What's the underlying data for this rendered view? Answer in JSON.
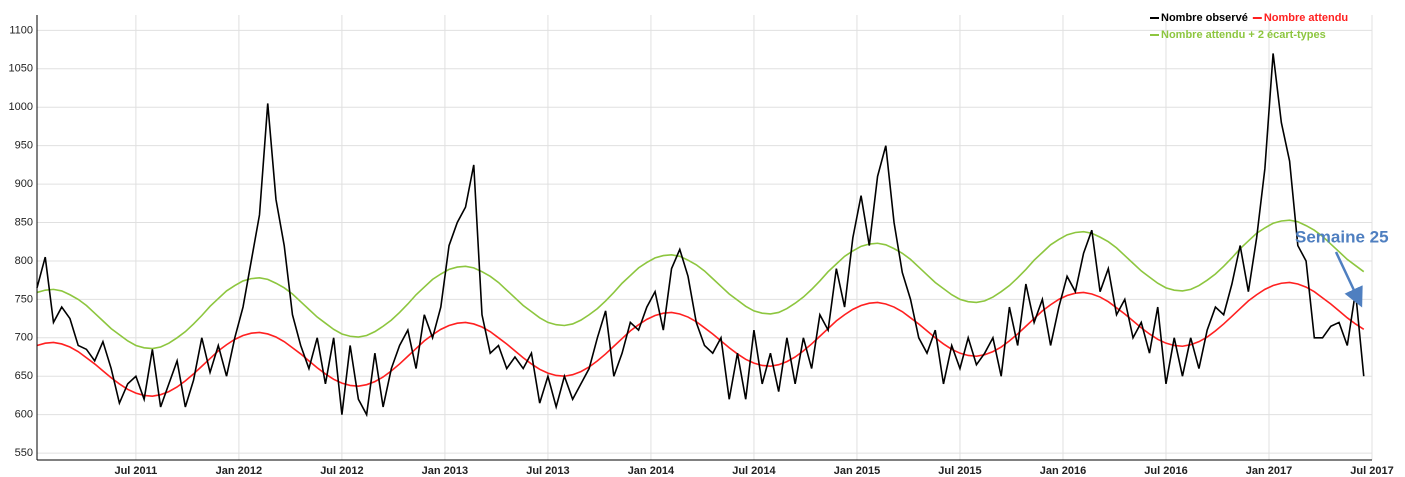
{
  "chart_data": {
    "type": "line",
    "annotation": "Semaine 25",
    "legend": "top-right",
    "grid": true,
    "xlim": [
      2011.02,
      2017.5
    ],
    "xticks": [
      {
        "value": 2011.5,
        "label": "Jul 2011"
      },
      {
        "value": 2012,
        "label": "Jan 2012"
      },
      {
        "value": 2012.5,
        "label": "Jul 2012"
      },
      {
        "value": 2013,
        "label": "Jan 2013"
      },
      {
        "value": 2013.5,
        "label": "Jul 2013"
      },
      {
        "value": 2014,
        "label": "Jan 2014"
      },
      {
        "value": 2014.5,
        "label": "Jul 2014"
      },
      {
        "value": 2015,
        "label": "Jan 2015"
      },
      {
        "value": 2015.5,
        "label": "Jul 2015"
      },
      {
        "value": 2016,
        "label": "Jan 2016"
      },
      {
        "value": 2016.5,
        "label": "Jul 2016"
      },
      {
        "value": 2017,
        "label": "Jan 2017"
      },
      {
        "value": 2017.5,
        "label": "Jul 2017"
      }
    ],
    "ylim": [
      541,
      1120
    ],
    "yticks": [
      550,
      600,
      650,
      700,
      750,
      800,
      850,
      900,
      950,
      1000,
      1050,
      1100
    ],
    "x": [
      2011.02,
      2011.06,
      2011.1,
      2011.14,
      2011.18,
      2011.22,
      2011.26,
      2011.3,
      2011.34,
      2011.38,
      2011.42,
      2011.46,
      2011.5,
      2011.54,
      2011.58,
      2011.62,
      2011.66,
      2011.7,
      2011.74,
      2011.78,
      2011.82,
      2011.86,
      2011.9,
      2011.94,
      2011.98,
      2012.02,
      2012.06,
      2012.1,
      2012.14,
      2012.18,
      2012.22,
      2012.26,
      2012.3,
      2012.34,
      2012.38,
      2012.42,
      2012.46,
      2012.5,
      2012.54,
      2012.58,
      2012.62,
      2012.66,
      2012.7,
      2012.74,
      2012.78,
      2012.82,
      2012.86,
      2012.9,
      2012.94,
      2012.98,
      2013.02,
      2013.06,
      2013.1,
      2013.14,
      2013.18,
      2013.22,
      2013.26,
      2013.3,
      2013.34,
      2013.38,
      2013.42,
      2013.46,
      2013.5,
      2013.54,
      2013.58,
      2013.62,
      2013.66,
      2013.7,
      2013.74,
      2013.78,
      2013.82,
      2013.86,
      2013.9,
      2013.94,
      2013.98,
      2014.02,
      2014.06,
      2014.1,
      2014.14,
      2014.18,
      2014.22,
      2014.26,
      2014.3,
      2014.34,
      2014.38,
      2014.42,
      2014.46,
      2014.5,
      2014.54,
      2014.58,
      2014.62,
      2014.66,
      2014.7,
      2014.74,
      2014.78,
      2014.82,
      2014.86,
      2014.9,
      2014.94,
      2014.98,
      2015.02,
      2015.06,
      2015.1,
      2015.14,
      2015.18,
      2015.22,
      2015.26,
      2015.3,
      2015.34,
      2015.38,
      2015.42,
      2015.46,
      2015.5,
      2015.54,
      2015.58,
      2015.62,
      2015.66,
      2015.7,
      2015.74,
      2015.78,
      2015.82,
      2015.86,
      2015.9,
      2015.94,
      2015.98,
      2016.02,
      2016.06,
      2016.1,
      2016.14,
      2016.18,
      2016.22,
      2016.26,
      2016.3,
      2016.34,
      2016.38,
      2016.42,
      2016.46,
      2016.5,
      2016.54,
      2016.58,
      2016.62,
      2016.66,
      2016.7,
      2016.74,
      2016.78,
      2016.82,
      2016.86,
      2016.9,
      2016.94,
      2016.98,
      2017.02,
      2017.06,
      2017.1,
      2017.14,
      2017.18,
      2017.22,
      2017.26,
      2017.3,
      2017.34,
      2017.38,
      2017.42,
      2017.46
    ],
    "series": [
      {
        "name": "Nombre observé",
        "color": "#000000",
        "values": [
          765,
          805,
          720,
          740,
          725,
          690,
          685,
          670,
          695,
          660,
          615,
          640,
          650,
          620,
          685,
          610,
          640,
          670,
          610,
          645,
          700,
          655,
          690,
          650,
          700,
          740,
          800,
          860,
          1005,
          880,
          820,
          730,
          690,
          660,
          700,
          640,
          700,
          600,
          690,
          620,
          600,
          680,
          610,
          660,
          690,
          710,
          660,
          730,
          700,
          740,
          820,
          850,
          870,
          925,
          730,
          680,
          690,
          660,
          675,
          660,
          680,
          615,
          650,
          610,
          650,
          620,
          640,
          660,
          700,
          735,
          650,
          680,
          720,
          710,
          740,
          760,
          710,
          790,
          815,
          780,
          720,
          690,
          680,
          700,
          620,
          680,
          620,
          710,
          640,
          680,
          630,
          700,
          640,
          700,
          660,
          730,
          710,
          790,
          740,
          830,
          885,
          820,
          910,
          950,
          850,
          785,
          750,
          700,
          680,
          710,
          640,
          690,
          660,
          700,
          665,
          680,
          700,
          650,
          740,
          690,
          770,
          720,
          750,
          690,
          740,
          780,
          760,
          810,
          840,
          760,
          790,
          730,
          750,
          700,
          720,
          680,
          740,
          640,
          700,
          650,
          700,
          660,
          710,
          740,
          730,
          770,
          820,
          760,
          830,
          920,
          1070,
          980,
          930,
          820,
          800,
          700,
          700,
          715,
          720,
          690,
          760,
          650
        ]
      },
      {
        "name": "Nombre attendu",
        "color": "#ff2020",
        "values": [
          690,
          693,
          694,
          692,
          688,
          682,
          674,
          666,
          657,
          648,
          640,
          633,
          628,
          625,
          624,
          626,
          630,
          636,
          644,
          653,
          663,
          673,
          683,
          691,
          698,
          703,
          706,
          707,
          705,
          701,
          695,
          687,
          679,
          670,
          661,
          653,
          646,
          641,
          638,
          637,
          639,
          643,
          649,
          657,
          666,
          676,
          686,
          696,
          704,
          711,
          716,
          719,
          720,
          718,
          714,
          708,
          700,
          692,
          683,
          674,
          666,
          659,
          654,
          651,
          650,
          652,
          656,
          662,
          670,
          679,
          689,
          699,
          709,
          717,
          724,
          729,
          732,
          733,
          731,
          727,
          721,
          713,
          705,
          696,
          687,
          679,
          672,
          667,
          664,
          663,
          665,
          669,
          675,
          683,
          692,
          702,
          712,
          722,
          730,
          737,
          742,
          745,
          746,
          744,
          740,
          734,
          726,
          718,
          709,
          700,
          692,
          685,
          680,
          677,
          676,
          678,
          682,
          688,
          696,
          705,
          715,
          725,
          735,
          743,
          750,
          755,
          758,
          759,
          757,
          753,
          747,
          739,
          731,
          722,
          713,
          705,
          698,
          693,
          690,
          689,
          691,
          695,
          701,
          709,
          718,
          728,
          738,
          748,
          756,
          763,
          768,
          771,
          772,
          770,
          766,
          760,
          752,
          744,
          735,
          726,
          718,
          711
        ]
      },
      {
        "name": "Nombre attendu + 2 écart-types",
        "color": "#8dc63f",
        "values": [
          759,
          762,
          763,
          761,
          756,
          750,
          742,
          732,
          722,
          712,
          704,
          696,
          690,
          687,
          686,
          688,
          693,
          700,
          708,
          718,
          729,
          741,
          751,
          761,
          768,
          774,
          777,
          778,
          776,
          771,
          765,
          757,
          747,
          737,
          727,
          719,
          711,
          705,
          702,
          701,
          703,
          708,
          715,
          723,
          733,
          744,
          756,
          766,
          776,
          783,
          789,
          792,
          793,
          791,
          786,
          780,
          772,
          762,
          752,
          742,
          734,
          726,
          720,
          717,
          716,
          718,
          723,
          730,
          738,
          748,
          759,
          771,
          781,
          791,
          798,
          804,
          807,
          808,
          806,
          801,
          795,
          787,
          777,
          767,
          757,
          749,
          741,
          735,
          732,
          731,
          733,
          738,
          745,
          753,
          763,
          774,
          786,
          796,
          806,
          813,
          819,
          822,
          823,
          821,
          816,
          810,
          802,
          792,
          782,
          772,
          764,
          756,
          750,
          747,
          746,
          748,
          753,
          760,
          768,
          778,
          789,
          801,
          811,
          821,
          828,
          834,
          837,
          838,
          836,
          831,
          825,
          817,
          807,
          797,
          787,
          779,
          771,
          765,
          762,
          761,
          763,
          768,
          775,
          783,
          793,
          804,
          816,
          826,
          836,
          843,
          849,
          852,
          853,
          851,
          846,
          840,
          832,
          822,
          812,
          802,
          794,
          786
        ]
      }
    ]
  }
}
